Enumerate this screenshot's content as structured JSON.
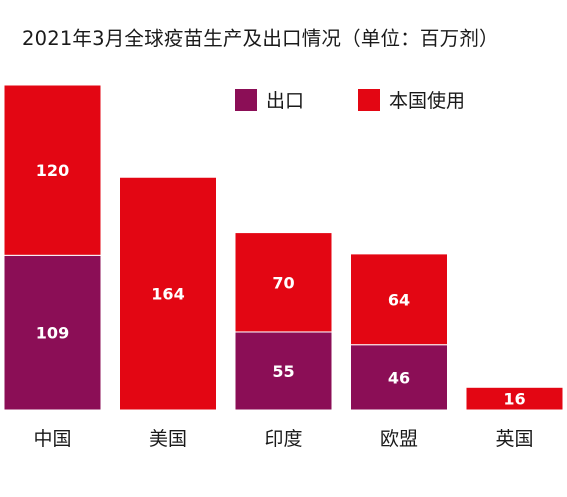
{
  "chart_data": {
    "type": "bar",
    "stacked": true,
    "title": "2021年3月全球疫苗生产及出口情况（单位：百万剂）",
    "categories": [
      "中国",
      "美国",
      "印度",
      "欧盟",
      "英国"
    ],
    "series": [
      {
        "name": "出口",
        "color": "#8b0e56",
        "values": [
          109,
          0,
          55,
          46,
          0
        ]
      },
      {
        "name": "本国使用",
        "color": "#e30613",
        "values": [
          120,
          164,
          70,
          64,
          16
        ]
      }
    ],
    "ylim": [
      0,
      229
    ],
    "grid": false,
    "legend_position": "top-right",
    "data_labels": true
  }
}
